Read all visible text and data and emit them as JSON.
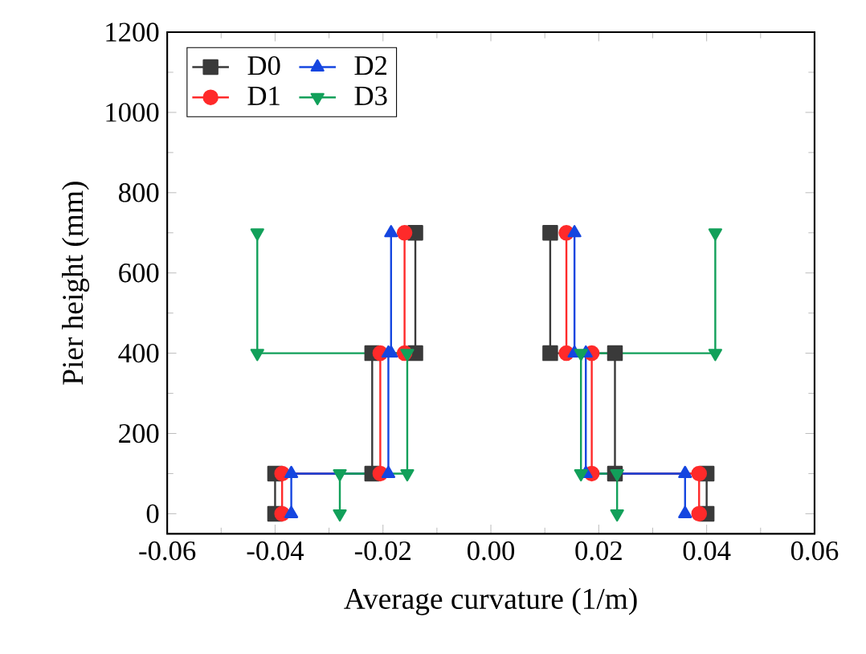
{
  "chart_data": {
    "type": "line",
    "xlabel": "Average curvature (1/m)",
    "ylabel": "Pier height (mm)",
    "xlim": [
      -0.06,
      0.06
    ],
    "ylim": [
      -50,
      1200
    ],
    "xticks": [
      {
        "value": -0.06,
        "label": "-0.06"
      },
      {
        "value": -0.04,
        "label": "-0.04"
      },
      {
        "value": -0.02,
        "label": "-0.02"
      },
      {
        "value": 0,
        "label": "0.00"
      },
      {
        "value": 0.02,
        "label": "0.02"
      },
      {
        "value": 0.04,
        "label": "0.04"
      },
      {
        "value": 0.06,
        "label": "0.06"
      }
    ],
    "yticks": [
      0,
      200,
      400,
      600,
      800,
      1000,
      1200
    ],
    "legend": "top left",
    "grid": false,
    "series": [
      {
        "name": "D0",
        "color": "#3a3a3a",
        "marker": "square",
        "x": [
          -0.014,
          -0.014,
          -0.022,
          -0.022,
          -0.04,
          -0.04,
          null,
          0.011,
          0.011,
          0.023,
          0.023,
          0.04,
          0.04
        ],
        "values": [
          700,
          400,
          400,
          100,
          100,
          0,
          null,
          700,
          400,
          400,
          100,
          100,
          0
        ]
      },
      {
        "name": "D1",
        "color": "#ff2a2a",
        "marker": "circle",
        "x": [
          -0.016,
          -0.016,
          -0.0205,
          -0.0205,
          -0.0387,
          -0.0387,
          null,
          0.014,
          0.014,
          0.0187,
          0.0187,
          0.0386,
          0.0386
        ],
        "values": [
          700,
          400,
          400,
          100,
          100,
          0,
          null,
          700,
          400,
          400,
          100,
          100,
          0
        ]
      },
      {
        "name": "D2",
        "color": "#1546e0",
        "marker": "triangle",
        "x": [
          -0.0185,
          -0.0185,
          -0.019,
          -0.019,
          -0.037,
          -0.037,
          null,
          0.0155,
          0.0155,
          0.0176,
          0.0176,
          0.036,
          0.036
        ],
        "values": [
          700,
          400,
          400,
          100,
          100,
          0,
          null,
          700,
          400,
          400,
          100,
          100,
          0
        ]
      },
      {
        "name": "D3",
        "color": "#12a05a",
        "marker": "triangle-down",
        "x": [
          -0.0433,
          -0.0433,
          -0.0155,
          -0.0155,
          -0.028,
          -0.028,
          null,
          0.0416,
          0.0416,
          0.0167,
          0.0167,
          0.0234,
          0.0234
        ],
        "values": [
          700,
          400,
          400,
          100,
          100,
          0,
          null,
          700,
          400,
          400,
          100,
          100,
          0
        ]
      }
    ]
  }
}
